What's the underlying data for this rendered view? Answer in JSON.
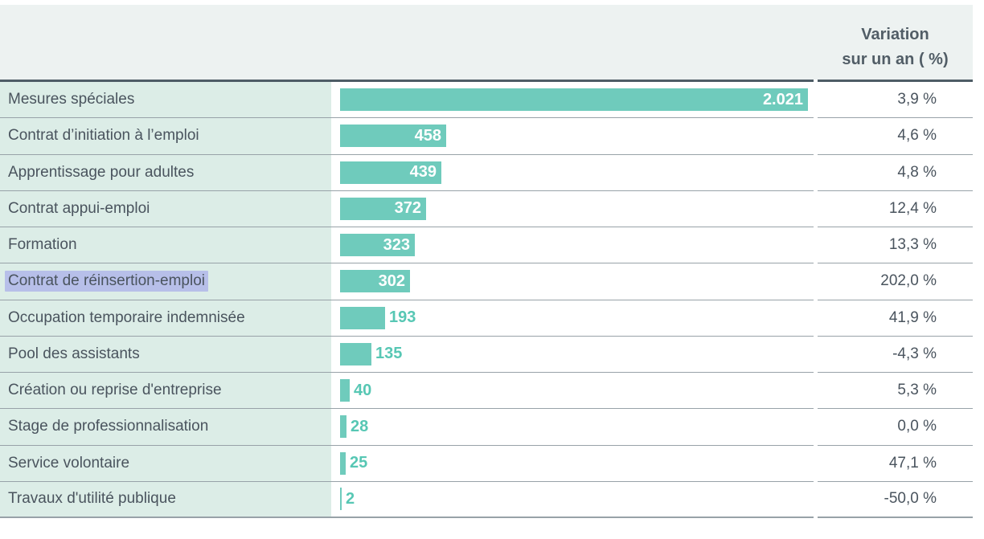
{
  "colors": {
    "bar": "#6fcbbc",
    "value_text": "#57c7b4",
    "text": "#4a545e",
    "header_text": "#515d66",
    "header_bg": "#edf2f1",
    "label_col_bg": "#dcede7",
    "header_rule": "#4e5c66",
    "row_rule": "#98a2a8",
    "highlight": "#b7bfe9"
  },
  "chart_data": {
    "type": "bar",
    "orientation": "horizontal",
    "value_axis_max": 2021,
    "column_header_line1": "Variation",
    "column_header_line2": "sur un an ( %)",
    "rows": [
      {
        "label": "Mesures spéciales",
        "value": 2021,
        "value_label": "2.021",
        "variation": "3,9 %",
        "highlighted": false
      },
      {
        "label": "Contrat d’initiation à l’emploi",
        "value": 458,
        "value_label": "458",
        "variation": "4,6 %",
        "highlighted": false
      },
      {
        "label": "Apprentissage pour adultes",
        "value": 439,
        "value_label": "439",
        "variation": "4,8 %",
        "highlighted": false
      },
      {
        "label": "Contrat appui-emploi",
        "value": 372,
        "value_label": "372",
        "variation": "12,4 %",
        "highlighted": false
      },
      {
        "label": "Formation",
        "value": 323,
        "value_label": "323",
        "variation": "13,3 %",
        "highlighted": false
      },
      {
        "label": "Contrat de réinsertion-emploi",
        "value": 302,
        "value_label": "302",
        "variation": "202,0 %",
        "highlighted": true
      },
      {
        "label": "Occupation temporaire indemnisée",
        "value": 193,
        "value_label": "193",
        "variation": "41,9 %",
        "highlighted": false
      },
      {
        "label": "Pool des assistants",
        "value": 135,
        "value_label": "135",
        "variation": "-4,3 %",
        "highlighted": false
      },
      {
        "label": "Création ou reprise d'entreprise",
        "value": 40,
        "value_label": "40",
        "variation": "5,3 %",
        "highlighted": false
      },
      {
        "label": "Stage de professionnalisation",
        "value": 28,
        "value_label": "28",
        "variation": "0,0 %",
        "highlighted": false
      },
      {
        "label": "Service volontaire",
        "value": 25,
        "value_label": "25",
        "variation": "47,1 %",
        "highlighted": false
      },
      {
        "label": "Travaux d'utilité publique",
        "value": 2,
        "value_label": "2",
        "variation": "-50,0 %",
        "highlighted": false
      }
    ]
  }
}
